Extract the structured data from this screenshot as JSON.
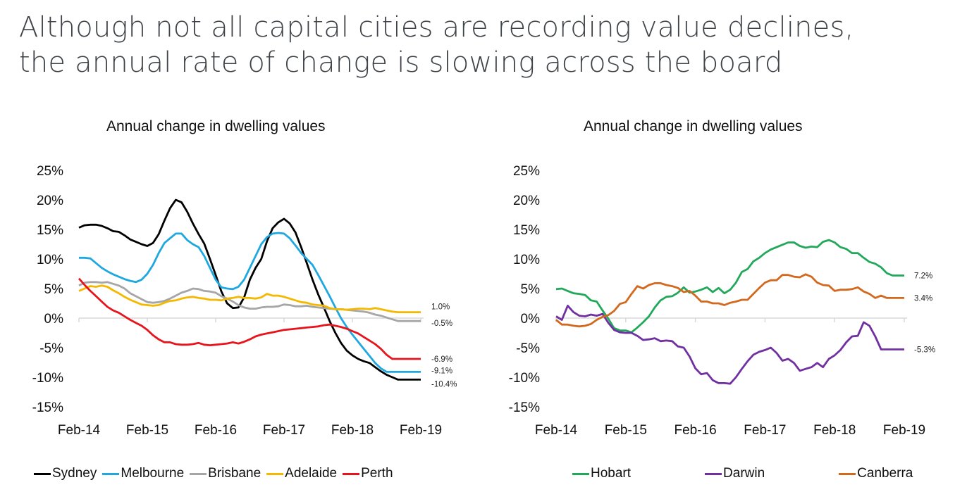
{
  "headline": {
    "line1": "Although not all capital cities are recording value declines,",
    "line2": "the annual rate of change is slowing across the board"
  },
  "chart_data": [
    {
      "type": "line",
      "title": "Annual change in dwelling values",
      "xlabel": "",
      "ylabel": "",
      "ylim": [
        -15,
        25
      ],
      "yticks": [
        "25%",
        "20%",
        "15%",
        "10%",
        "5%",
        "0%",
        "-5%",
        "-10%",
        "-15%"
      ],
      "xticks": [
        "Feb-14",
        "Feb-15",
        "Feb-16",
        "Feb-17",
        "Feb-18",
        "Feb-19"
      ],
      "x_range": [
        "Feb-14",
        "Feb-19"
      ],
      "frequency": "monthly",
      "grid": false,
      "legend": "bottom",
      "series": [
        {
          "name": "Sydney",
          "color": "#000000",
          "end_label": "-10.4%",
          "values": [
            15.3,
            15.7,
            15.8,
            15.8,
            15.6,
            15.2,
            14.7,
            14.6,
            14.0,
            13.3,
            12.9,
            12.5,
            12.2,
            12.7,
            14.2,
            16.5,
            18.6,
            20.0,
            19.6,
            18.0,
            16.0,
            14.2,
            12.6,
            10.0,
            7.3,
            4.5,
            2.5,
            1.7,
            1.8,
            3.5,
            6.5,
            8.5,
            10.0,
            13.0,
            15.2,
            16.2,
            16.8,
            16.0,
            14.5,
            12.0,
            9.3,
            6.5,
            4.0,
            1.8,
            -0.5,
            -2.5,
            -4.2,
            -5.5,
            -6.3,
            -6.9,
            -7.3,
            -7.6,
            -8.3,
            -9.0,
            -9.6,
            -10.0,
            -10.4,
            -10.4,
            -10.4,
            -10.4,
            -10.4
          ]
        },
        {
          "name": "Melbourne",
          "color": "#1fa8e0",
          "end_label": "-9.1%",
          "values": [
            10.2,
            10.2,
            10.1,
            9.3,
            8.5,
            7.9,
            7.4,
            7.0,
            6.6,
            6.3,
            6.1,
            6.5,
            7.5,
            9.0,
            11.0,
            12.7,
            13.5,
            14.3,
            14.3,
            13.2,
            12.5,
            12.0,
            10.5,
            8.5,
            6.5,
            5.2,
            5.0,
            4.9,
            5.3,
            6.5,
            8.5,
            10.5,
            12.5,
            13.7,
            14.3,
            14.4,
            14.3,
            13.5,
            12.3,
            11.0,
            10.0,
            9.0,
            7.3,
            5.5,
            3.7,
            1.8,
            0.0,
            -1.5,
            -2.8,
            -4.0,
            -5.2,
            -6.4,
            -7.6,
            -8.5,
            -9.1,
            -9.1,
            -9.1,
            -9.1,
            -9.1,
            -9.1,
            -9.1
          ]
        },
        {
          "name": "Brisbane",
          "color": "#a6a6a6",
          "end_label": "-0.5%",
          "values": [
            5.5,
            6.0,
            6.1,
            6.1,
            6.0,
            6.1,
            5.8,
            5.5,
            5.0,
            4.2,
            3.7,
            3.2,
            2.7,
            2.6,
            2.7,
            2.9,
            3.3,
            3.8,
            4.3,
            4.6,
            5.0,
            4.9,
            4.6,
            4.5,
            4.3,
            3.7,
            3.3,
            2.8,
            2.2,
            1.8,
            1.6,
            1.6,
            1.8,
            1.9,
            1.9,
            2.0,
            2.3,
            2.2,
            2.0,
            2.0,
            2.1,
            1.9,
            1.8,
            1.7,
            1.6,
            1.5,
            1.5,
            1.4,
            1.3,
            1.2,
            1.1,
            0.9,
            0.6,
            0.4,
            0.1,
            -0.2,
            -0.5,
            -0.5,
            -0.5,
            -0.5,
            -0.5
          ]
        },
        {
          "name": "Adelaide",
          "color": "#f5b800",
          "end_label": "1.0%",
          "values": [
            4.6,
            5.0,
            5.4,
            5.3,
            5.5,
            5.3,
            4.7,
            4.2,
            3.6,
            3.1,
            2.7,
            2.3,
            2.2,
            2.1,
            2.2,
            2.6,
            2.9,
            3.0,
            3.3,
            3.5,
            3.6,
            3.4,
            3.3,
            3.1,
            3.1,
            3.0,
            3.3,
            3.4,
            3.6,
            3.4,
            3.4,
            3.3,
            3.5,
            4.1,
            3.8,
            3.8,
            3.6,
            3.3,
            3.0,
            2.7,
            2.6,
            2.3,
            2.2,
            2.1,
            1.7,
            1.5,
            1.5,
            1.4,
            1.5,
            1.6,
            1.6,
            1.5,
            1.7,
            1.5,
            1.3,
            1.1,
            1.0,
            1.0,
            1.0,
            1.0,
            1.0
          ]
        },
        {
          "name": "Perth",
          "color": "#e8141c",
          "end_label": "-6.9%",
          "values": [
            6.7,
            5.6,
            4.6,
            3.7,
            2.8,
            1.9,
            1.3,
            0.9,
            0.3,
            -0.3,
            -0.8,
            -1.3,
            -2.0,
            -2.9,
            -3.6,
            -4.1,
            -4.1,
            -4.4,
            -4.5,
            -4.5,
            -4.4,
            -4.2,
            -4.5,
            -4.6,
            -4.5,
            -4.4,
            -4.3,
            -4.1,
            -4.3,
            -4.0,
            -3.6,
            -3.1,
            -2.8,
            -2.6,
            -2.4,
            -2.2,
            -2.0,
            -1.9,
            -1.8,
            -1.7,
            -1.6,
            -1.5,
            -1.4,
            -1.2,
            -1.1,
            -1.3,
            -1.5,
            -1.8,
            -2.2,
            -2.6,
            -3.2,
            -3.8,
            -4.4,
            -5.2,
            -6.2,
            -6.9,
            -6.9,
            -6.9,
            -6.9,
            -6.9,
            -6.9
          ]
        }
      ]
    },
    {
      "type": "line",
      "title": "Annual change in dwelling values",
      "xlabel": "",
      "ylabel": "",
      "ylim": [
        -15,
        25
      ],
      "yticks": [
        "25%",
        "20%",
        "15%",
        "10%",
        "5%",
        "0%",
        "-5%",
        "-10%",
        "-15%"
      ],
      "xticks": [
        "Feb-14",
        "Feb-15",
        "Feb-16",
        "Feb-17",
        "Feb-18",
        "Feb-19"
      ],
      "x_range": [
        "Feb-14",
        "Feb-19"
      ],
      "frequency": "monthly",
      "grid": false,
      "legend": "bottom",
      "series": [
        {
          "name": "Hobart",
          "color": "#22a85a",
          "end_label": "7.2%",
          "values": [
            4.9,
            5.0,
            4.6,
            4.2,
            4.1,
            3.9,
            3.0,
            2.8,
            1.3,
            -0.1,
            -1.7,
            -2.1,
            -2.1,
            -2.4,
            -1.6,
            -0.7,
            0.3,
            1.8,
            3.0,
            3.6,
            3.7,
            4.3,
            5.2,
            4.3,
            4.5,
            4.8,
            5.2,
            4.4,
            5.1,
            4.2,
            4.8,
            6.0,
            7.8,
            8.3,
            9.6,
            10.2,
            11.0,
            11.6,
            12.0,
            12.4,
            12.8,
            12.8,
            12.2,
            11.9,
            12.1,
            12.0,
            12.9,
            13.2,
            12.8,
            12.0,
            11.7,
            11.0,
            11.0,
            10.2,
            9.5,
            9.2,
            8.6,
            7.6,
            7.2,
            7.2,
            7.2
          ]
        },
        {
          "name": "Darwin",
          "color": "#7030a0",
          "end_label": "-5.3%",
          "values": [
            0.3,
            -0.3,
            2.1,
            1.0,
            0.4,
            0.3,
            0.6,
            0.4,
            0.7,
            -0.8,
            -2.0,
            -2.4,
            -2.5,
            -2.5,
            -3.0,
            -3.7,
            -3.6,
            -3.4,
            -3.9,
            -3.8,
            -3.9,
            -4.8,
            -5.0,
            -6.5,
            -8.5,
            -9.5,
            -9.3,
            -10.5,
            -11.0,
            -11.0,
            -11.1,
            -10.0,
            -8.6,
            -7.3,
            -6.2,
            -5.7,
            -5.4,
            -5.0,
            -5.9,
            -7.2,
            -6.9,
            -7.6,
            -8.9,
            -8.6,
            -8.3,
            -7.6,
            -8.3,
            -6.9,
            -6.3,
            -5.4,
            -4.1,
            -3.1,
            -3.0,
            -0.7,
            -1.3,
            -3.1,
            -5.3,
            -5.3,
            -5.3,
            -5.3,
            -5.3
          ]
        },
        {
          "name": "Canberra",
          "color": "#d2691e",
          "end_label": "3.4%",
          "values": [
            -0.3,
            -1.1,
            -1.1,
            -1.3,
            -1.4,
            -1.3,
            -1.0,
            -0.3,
            0.2,
            0.5,
            1.2,
            2.4,
            2.7,
            4.1,
            5.4,
            5.0,
            5.6,
            5.9,
            5.9,
            5.6,
            5.4,
            5.1,
            4.4,
            4.6,
            3.8,
            2.8,
            2.8,
            2.5,
            2.5,
            2.2,
            2.6,
            2.8,
            3.1,
            3.1,
            4.1,
            5.1,
            6.0,
            6.4,
            6.4,
            7.3,
            7.3,
            7.0,
            6.9,
            7.4,
            7.0,
            6.0,
            5.6,
            5.5,
            4.6,
            4.8,
            4.8,
            4.9,
            5.2,
            4.5,
            4.1,
            3.4,
            3.8,
            3.4,
            3.4,
            3.4,
            3.4
          ]
        }
      ]
    }
  ],
  "legends": {
    "left": [
      "Sydney",
      "Melbourne",
      "Brisbane",
      "Adelaide",
      "Perth"
    ],
    "right": [
      "Hobart",
      "Darwin",
      "Canberra"
    ]
  }
}
